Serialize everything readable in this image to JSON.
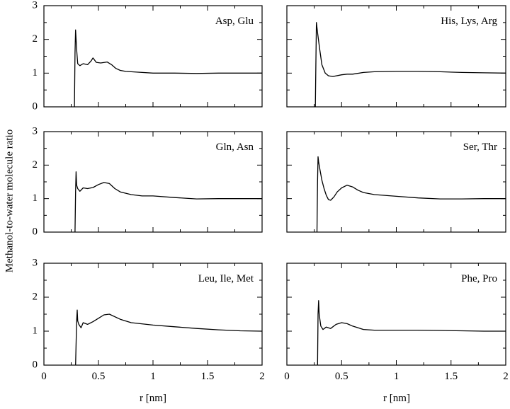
{
  "figure": {
    "ylabel": "Methanol-to-water molecule ratio",
    "xlabel": "r [nm]"
  },
  "chart_data": [
    {
      "type": "line",
      "title": "Asp, Glu",
      "xlabel": "r [nm]",
      "ylabel": "Methanol-to-water molecule ratio",
      "xlim": [
        0,
        2
      ],
      "ylim": [
        0,
        3
      ],
      "xticks": [
        "0",
        "0.5",
        "1",
        "1.5",
        "2"
      ],
      "yticks": [
        "0",
        "1",
        "2",
        "3"
      ],
      "x": [
        0.28,
        0.285,
        0.29,
        0.3,
        0.31,
        0.33,
        0.36,
        0.4,
        0.43,
        0.45,
        0.48,
        0.52,
        0.58,
        0.62,
        0.66,
        0.7,
        0.75,
        0.85,
        1.0,
        1.2,
        1.4,
        1.6,
        1.8,
        2.0
      ],
      "y": [
        0,
        1.6,
        2.28,
        1.7,
        1.28,
        1.22,
        1.28,
        1.25,
        1.35,
        1.45,
        1.32,
        1.3,
        1.33,
        1.25,
        1.14,
        1.08,
        1.05,
        1.03,
        1.0,
        1.0,
        0.99,
        1.0,
        1.0,
        1.0
      ]
    },
    {
      "type": "line",
      "title": "His, Lys, Arg",
      "xlabel": "r [nm]",
      "ylabel": "Methanol-to-water molecule ratio",
      "xlim": [
        0,
        2
      ],
      "ylim": [
        0,
        3
      ],
      "xticks": [
        "0",
        "0.5",
        "1",
        "1.5",
        "2"
      ],
      "yticks": [
        "0",
        "1",
        "2",
        "3"
      ],
      "x": [
        0.26,
        0.265,
        0.27,
        0.28,
        0.3,
        0.32,
        0.35,
        0.38,
        0.42,
        0.5,
        0.55,
        0.6,
        0.7,
        0.8,
        1.0,
        1.2,
        1.4,
        1.6,
        1.8,
        2.0
      ],
      "y": [
        0,
        1.2,
        2.5,
        2.2,
        1.7,
        1.25,
        1.0,
        0.92,
        0.9,
        0.95,
        0.97,
        0.97,
        1.02,
        1.04,
        1.05,
        1.05,
        1.04,
        1.02,
        1.01,
        1.0
      ]
    },
    {
      "type": "line",
      "title": "Gln, Asn",
      "xlabel": "r [nm]",
      "ylabel": "Methanol-to-water molecule ratio",
      "xlim": [
        0,
        2
      ],
      "ylim": [
        0,
        3
      ],
      "xticks": [
        "0",
        "0.5",
        "1",
        "1.5",
        "2"
      ],
      "yticks": [
        "0",
        "1",
        "2",
        "3"
      ],
      "x": [
        0.285,
        0.29,
        0.295,
        0.3,
        0.31,
        0.33,
        0.36,
        0.4,
        0.45,
        0.5,
        0.55,
        0.6,
        0.65,
        0.7,
        0.8,
        0.9,
        1.0,
        1.2,
        1.4,
        1.6,
        1.8,
        2.0
      ],
      "y": [
        0,
        1.2,
        1.8,
        1.4,
        1.3,
        1.22,
        1.32,
        1.3,
        1.33,
        1.42,
        1.48,
        1.45,
        1.3,
        1.2,
        1.12,
        1.08,
        1.08,
        1.03,
        0.99,
        1.0,
        1.0,
        1.0
      ]
    },
    {
      "type": "line",
      "title": "Ser, Thr",
      "xlabel": "r [nm]",
      "ylabel": "Methanol-to-water molecule ratio",
      "xlim": [
        0,
        2
      ],
      "ylim": [
        0,
        3
      ],
      "xticks": [
        "0",
        "0.5",
        "1",
        "1.5",
        "2"
      ],
      "yticks": [
        "0",
        "1",
        "2",
        "3"
      ],
      "x": [
        0.275,
        0.28,
        0.285,
        0.29,
        0.3,
        0.32,
        0.34,
        0.36,
        0.38,
        0.4,
        0.43,
        0.46,
        0.5,
        0.55,
        0.6,
        0.65,
        0.7,
        0.8,
        1.0,
        1.2,
        1.4,
        1.6,
        1.8,
        2.0
      ],
      "y": [
        0,
        1.5,
        2.25,
        2.1,
        1.9,
        1.55,
        1.3,
        1.1,
        0.97,
        0.95,
        1.05,
        1.2,
        1.32,
        1.4,
        1.35,
        1.25,
        1.18,
        1.12,
        1.07,
        1.02,
        0.99,
        0.99,
        1.0,
        1.0
      ]
    },
    {
      "type": "line",
      "title": "Leu, Ile, Met",
      "xlabel": "r [nm]",
      "ylabel": "Methanol-to-water molecule ratio",
      "xlim": [
        0,
        2
      ],
      "ylim": [
        0,
        3
      ],
      "xticks": [
        "0",
        "0.5",
        "1",
        "1.5",
        "2"
      ],
      "yticks": [
        "0",
        "1",
        "2",
        "3"
      ],
      "x": [
        0.29,
        0.3,
        0.305,
        0.31,
        0.32,
        0.34,
        0.36,
        0.4,
        0.45,
        0.5,
        0.55,
        0.6,
        0.7,
        0.8,
        1.0,
        1.2,
        1.4,
        1.6,
        1.8,
        2.0
      ],
      "y": [
        0,
        1.3,
        1.62,
        1.3,
        1.2,
        1.1,
        1.25,
        1.2,
        1.28,
        1.38,
        1.48,
        1.5,
        1.35,
        1.25,
        1.18,
        1.13,
        1.08,
        1.04,
        1.01,
        1.0
      ]
    },
    {
      "type": "line",
      "title": "Phe, Pro",
      "xlabel": "r [nm]",
      "ylabel": "Methanol-to-water molecule ratio",
      "xlim": [
        0,
        2
      ],
      "ylim": [
        0,
        3
      ],
      "xticks": [
        "0",
        "0.5",
        "1",
        "1.5",
        "2"
      ],
      "yticks": [
        "0",
        "1",
        "2",
        "3"
      ],
      "x": [
        0.28,
        0.285,
        0.29,
        0.295,
        0.31,
        0.33,
        0.36,
        0.4,
        0.45,
        0.5,
        0.55,
        0.6,
        0.7,
        0.8,
        1.0,
        1.2,
        1.4,
        1.6,
        1.8,
        2.0
      ],
      "y": [
        0,
        1.5,
        1.9,
        1.5,
        1.15,
        1.05,
        1.12,
        1.08,
        1.2,
        1.25,
        1.22,
        1.15,
        1.05,
        1.03,
        1.03,
        1.03,
        1.02,
        1.01,
        1.0,
        1.0
      ]
    }
  ]
}
